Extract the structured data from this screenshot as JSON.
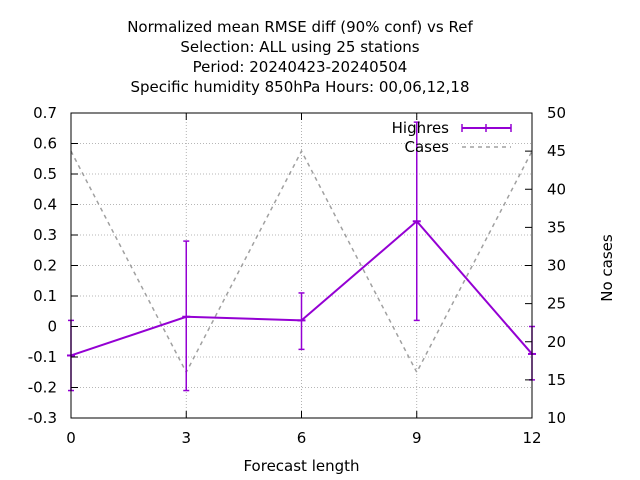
{
  "chart_data": {
    "type": "line",
    "title_lines": [
      "Normalized mean RMSE diff (90% conf) vs Ref",
      "Selection: ALL using    25 stations",
      "Period: 20240423-20240504",
      "Specific humidity 850hPa   Hours:  00,06,12,18"
    ],
    "xlabel": "Forecast length",
    "ylabel": "",
    "y2label": "No cases",
    "xlim": [
      0,
      12
    ],
    "ylim": [
      -0.3,
      0.7
    ],
    "y2lim": [
      10,
      50
    ],
    "x_ticks": [
      0,
      3,
      6,
      9,
      12
    ],
    "y_ticks": [
      -0.3,
      -0.2,
      -0.1,
      0,
      0.1,
      0.2,
      0.3,
      0.4,
      0.5,
      0.6,
      0.7
    ],
    "y_tick_labels": [
      "-0.3",
      "-0.2",
      "-0.1",
      "0",
      "0.1",
      "0.2",
      "0.3",
      "0.4",
      "0.5",
      "0.6",
      "0.7"
    ],
    "y2_ticks": [
      10,
      15,
      20,
      25,
      30,
      35,
      40,
      45,
      50
    ],
    "grid": true,
    "legend_position": "top-right",
    "x": [
      0,
      3,
      6,
      9,
      12
    ],
    "series": [
      {
        "name": "Highres",
        "axis": "y1",
        "style": "line-errorbars",
        "color": "#9400d3",
        "values": [
          -0.095,
          0.032,
          0.02,
          0.345,
          -0.09
        ],
        "err_low": [
          -0.21,
          -0.21,
          -0.075,
          0.02,
          -0.175
        ],
        "err_high": [
          0.02,
          0.28,
          0.11,
          0.67,
          0.0
        ]
      },
      {
        "name": "Cases",
        "axis": "y2",
        "style": "dashed",
        "color": "#a0a0a0",
        "values": [
          45,
          16,
          45,
          16,
          45
        ]
      }
    ]
  }
}
